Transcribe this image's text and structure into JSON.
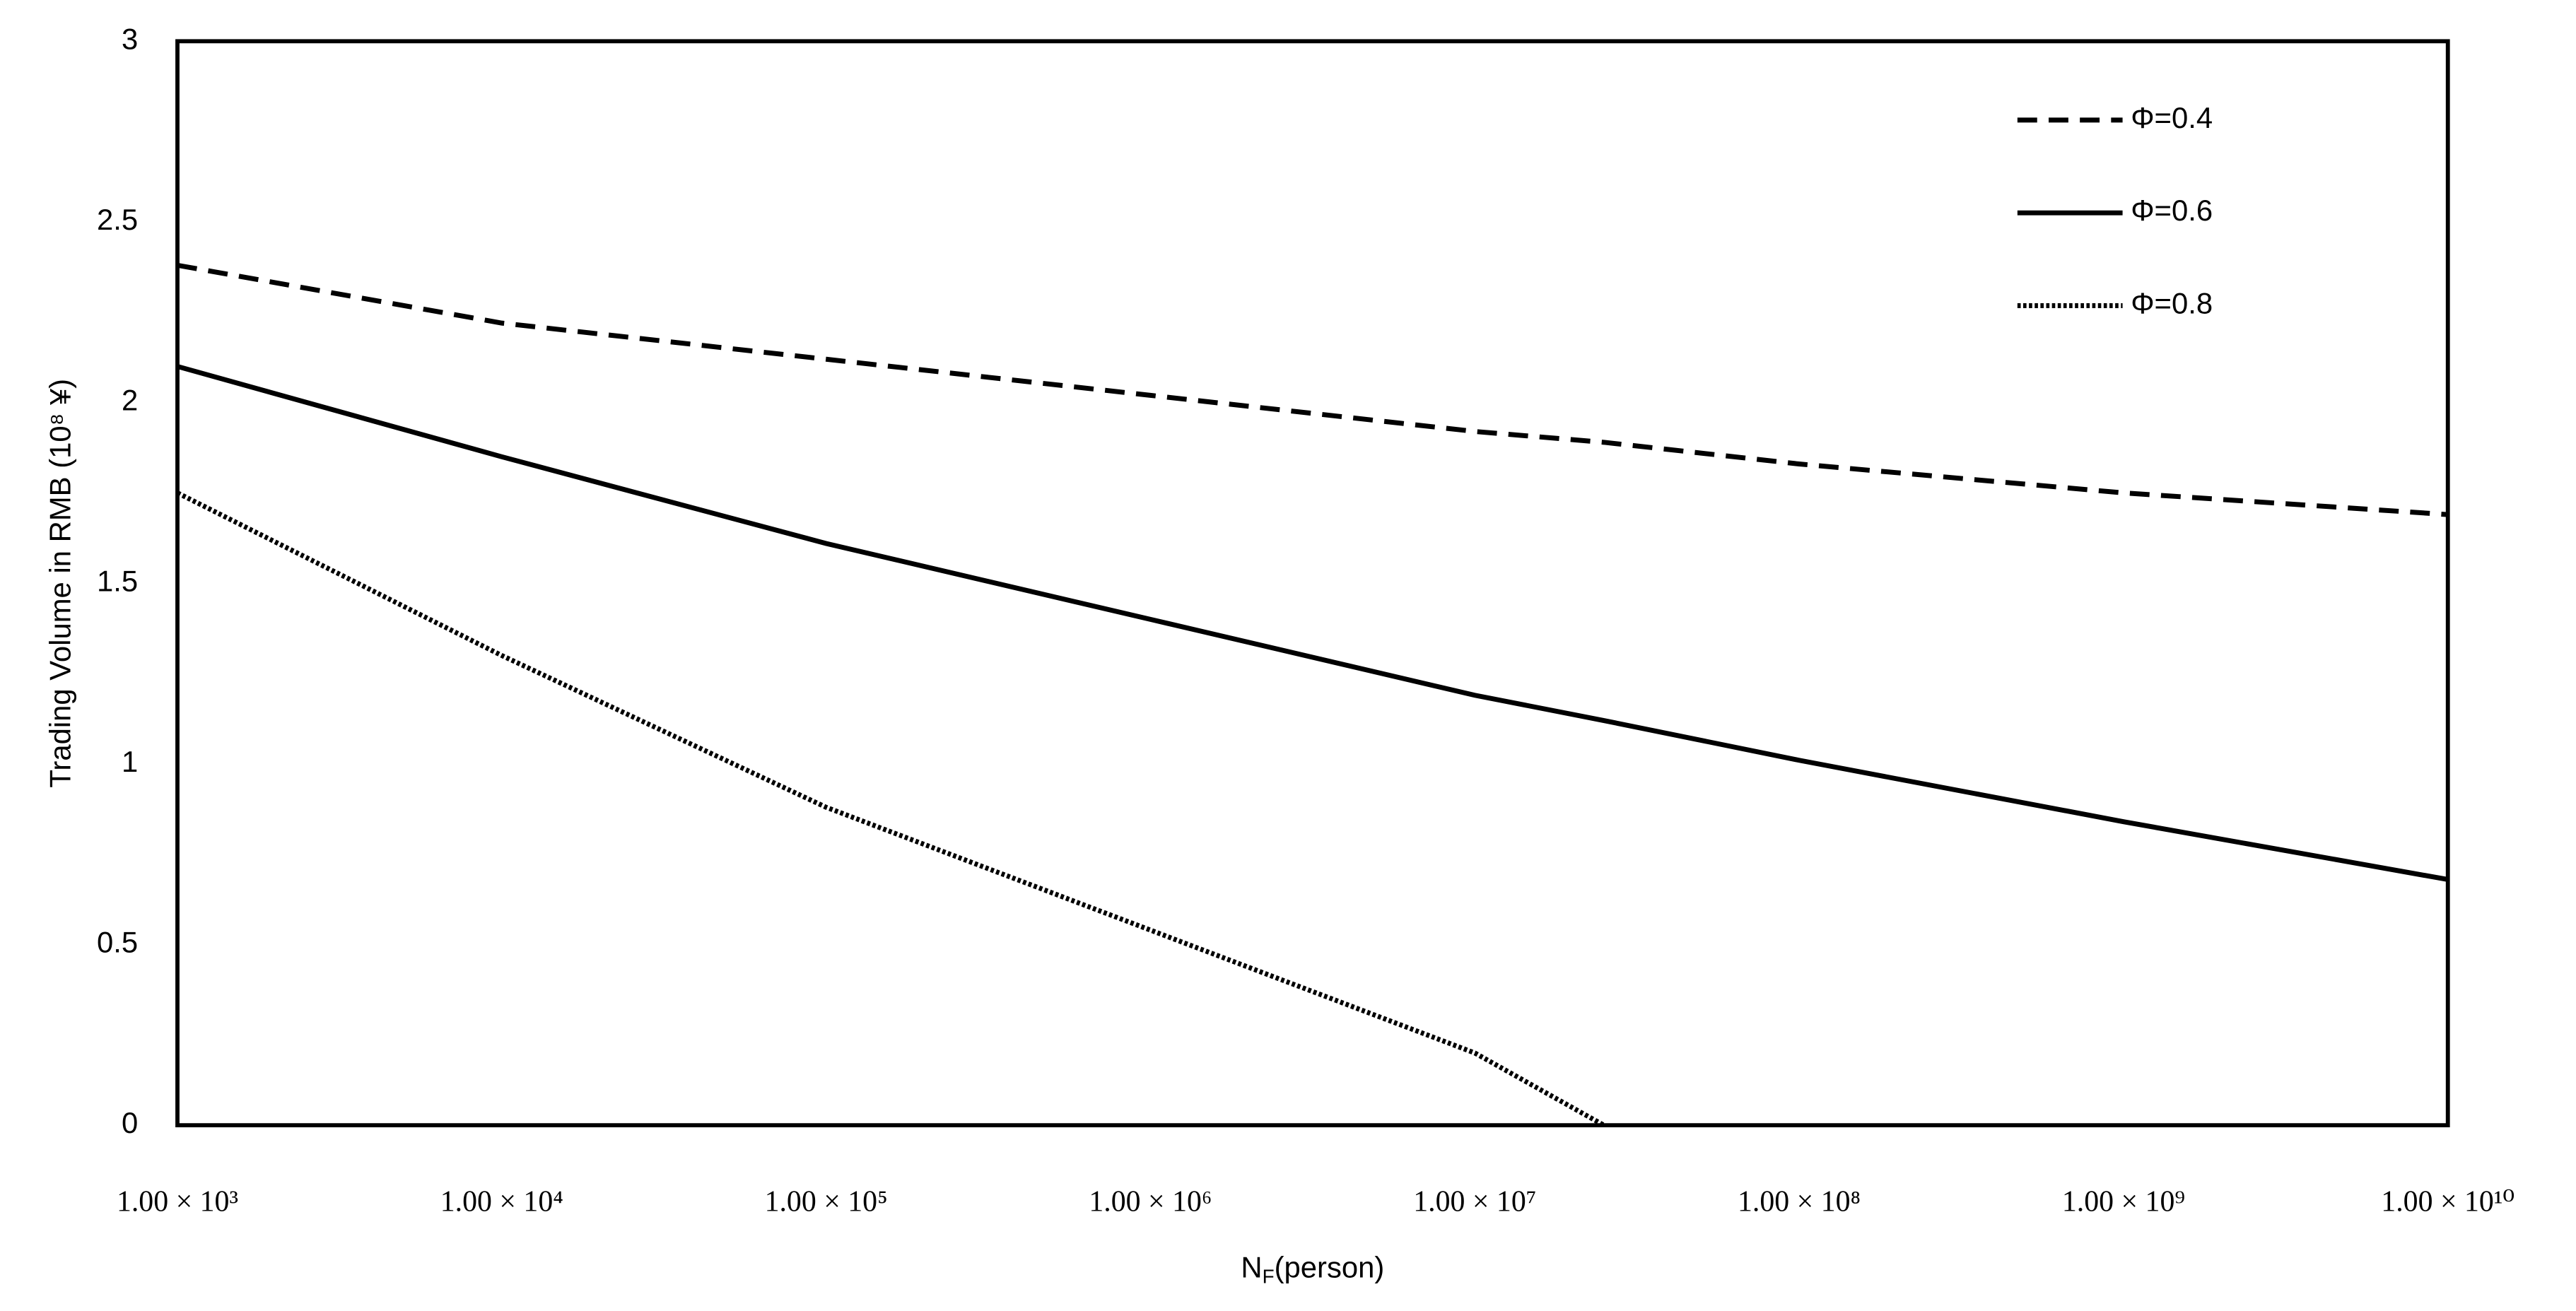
{
  "chart_data": {
    "type": "line",
    "x_label_parts": [
      "N",
      "F",
      "(person)"
    ],
    "y_label": "Trading Volume in RMB (10⁸ ¥)",
    "log_x": true,
    "grid": false,
    "legend": "top-right",
    "x": [
      1000,
      10000,
      100000,
      1000000,
      10000000,
      25000000,
      100000000,
      1000000000,
      10000000000
    ],
    "series": [
      {
        "name": "Φ=0.4",
        "color": "#000000",
        "dash": "dashed",
        "values": [
          2.38,
          2.22,
          2.12,
          2.02,
          1.92,
          1.89,
          1.83,
          1.75,
          1.69
        ]
      },
      {
        "name": "Φ=0.6",
        "color": "#000000",
        "dash": "solid",
        "values": [
          2.1,
          1.85,
          1.61,
          1.4,
          1.19,
          1.12,
          1.01,
          0.84,
          0.68
        ]
      },
      {
        "name": "Φ=0.8",
        "color": "#000000",
        "dash": "dotted",
        "values": [
          1.75,
          1.3,
          0.88,
          0.54,
          0.2,
          0,
          null,
          null,
          null
        ]
      }
    ],
    "xlim": [
      1000,
      10000000000
    ],
    "ylim": [
      0,
      3
    ],
    "xticks": [
      {
        "value": 1000,
        "label": "1.00 × 10³"
      },
      {
        "value": 10000,
        "label": "1.00 × 10⁴"
      },
      {
        "value": 100000,
        "label": "1.00 × 10⁵"
      },
      {
        "value": 1000000,
        "label": "1.00 × 10⁶"
      },
      {
        "value": 10000000,
        "label": "1.00 × 10⁷"
      },
      {
        "value": 100000000,
        "label": "1.00 × 10⁸"
      },
      {
        "value": 1000000000,
        "label": "1.00 × 10⁹"
      },
      {
        "value": 10000000000,
        "label": "1.00 × 10¹⁰"
      }
    ],
    "yticks": [
      0,
      0.5,
      1,
      1.5,
      2,
      2.5,
      3
    ]
  }
}
